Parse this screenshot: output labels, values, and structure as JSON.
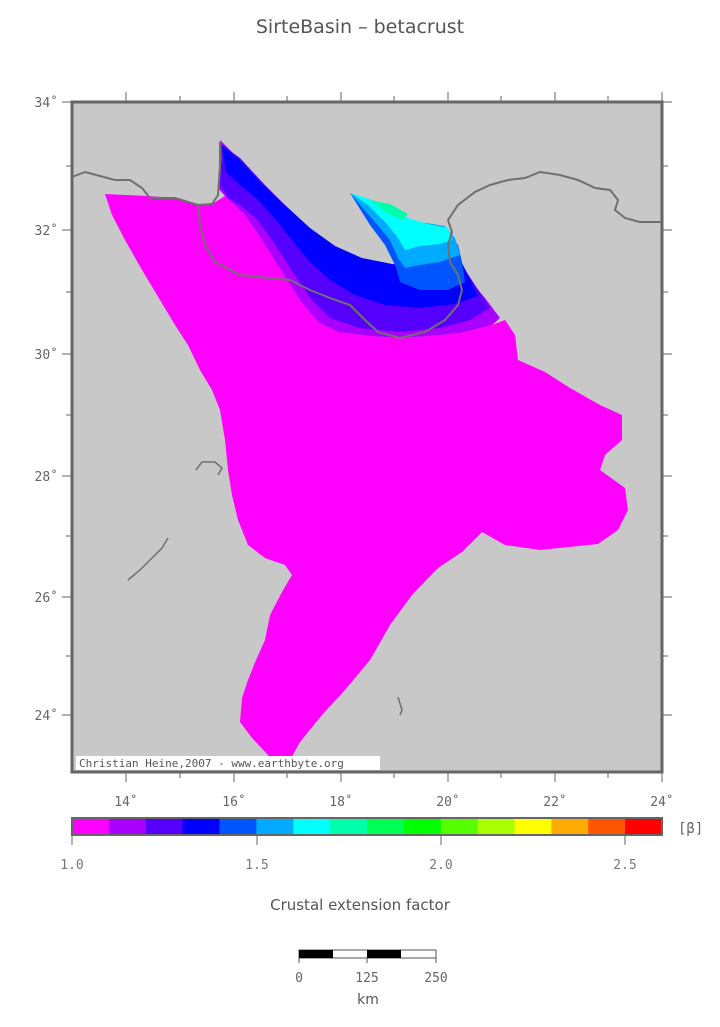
{
  "title": "SirteBasin – betacrust",
  "map": {
    "lat_labels": [
      "34˚",
      "32˚",
      "30˚",
      "28˚",
      "26˚",
      "24˚"
    ],
    "lon_labels": [
      "14˚",
      "16˚",
      "18˚",
      "20˚",
      "22˚",
      "24˚"
    ],
    "credit": "Christian Heine,2007 - www.earthbyte.org",
    "colors": {
      "land": "#c8c8c8",
      "coast": "#707070",
      "zone_1_0": "#ff00ff",
      "zone_1_1": "#aa00ff",
      "zone_1_2": "#5500ff",
      "zone_1_3": "#0000ff",
      "zone_1_4": "#0055ff",
      "zone_1_5": "#00aaff",
      "zone_1_6": "#00ffff"
    }
  },
  "colorbar": {
    "unit_label": "[β]",
    "colors": [
      "#ff00ff",
      "#aa00ff",
      "#5500ff",
      "#0000ff",
      "#0055ff",
      "#00aaff",
      "#00ffff",
      "#00ffaa",
      "#00ff55",
      "#00ff00",
      "#55ff00",
      "#aaff00",
      "#ffff00",
      "#ffaa00",
      "#ff5500",
      "#ff0000"
    ],
    "tick_labels": [
      "1.0",
      "1.5",
      "2.0",
      "2.5"
    ],
    "caption": "Crustal extension factor"
  },
  "scalebar": {
    "labels": [
      "0",
      "125",
      "250"
    ],
    "unit": "km"
  }
}
